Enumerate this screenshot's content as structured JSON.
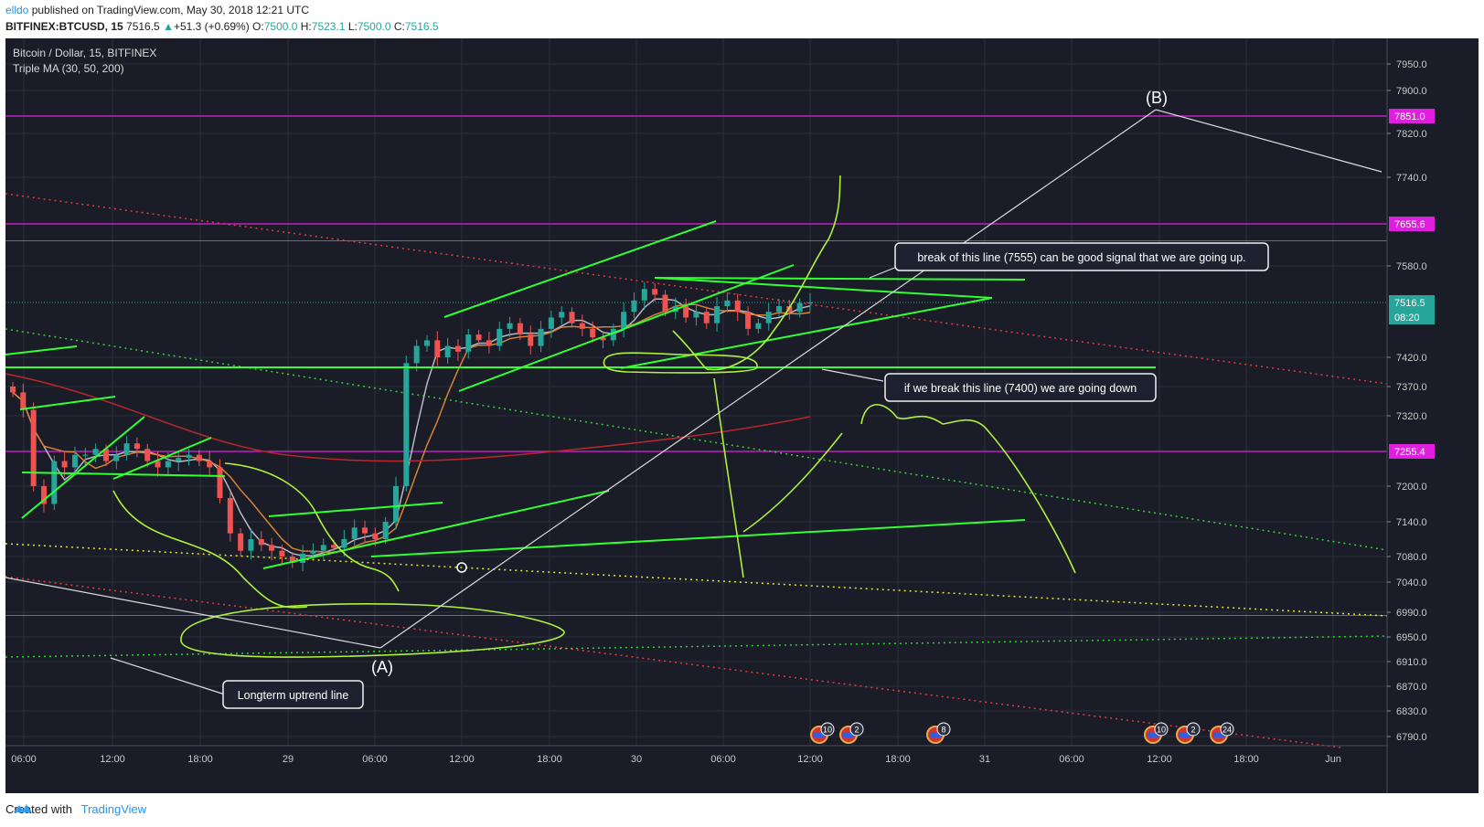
{
  "header": {
    "user": "elldo",
    "published": " published on TradingView.com, May 30, 2018 12:21 UTC",
    "symbol": "BITFINEX:BTCUSD, 15",
    "last": "7516.5",
    "change_arrow": "▲",
    "change": "+51.3 (+0.69%)",
    "o_label": "O:",
    "o": "7500.0",
    "h_label": "H:",
    "h": "7523.1",
    "l_label": "L:",
    "l": "7500.0",
    "c_label": "C:",
    "c": "7516.5"
  },
  "footer": {
    "created": "Created with",
    "brand": "TradingView",
    "logo_icon": "tradingview-logo-icon"
  },
  "colors": {
    "background": "#1a1d28",
    "grid": "#2a2e39",
    "candle_up": "#26a69a",
    "candle_down": "#ef5350",
    "drawing_green": "#32ff32",
    "curve_green": "#aef03c",
    "magenta_level": "#e01ee0",
    "cyan_level": "#2fd6d0",
    "ma30": "#b9b9c6",
    "ma50": "#d68234",
    "ma200": "#b3262b",
    "trend_white": "#dcdcdc"
  },
  "chart_data": {
    "type": "candlestick",
    "title": "Bitcoin / Dollar, 15, BITFINEX",
    "indicator": "Triple MA (30, 50, 200)",
    "y_scale": "price",
    "y_ticks": [
      7950.0,
      7900.0,
      7820.0,
      7740.0,
      7580.0,
      7420.0,
      7370.0,
      7320.0,
      7200.0,
      7140.0,
      7080.0,
      7040.0,
      6990.0,
      6950.0,
      6910.0,
      6870.0,
      6830.0,
      6790.0
    ],
    "x_ticks": [
      "06:00",
      "12:00",
      "18:00",
      "29",
      "06:00",
      "12:00",
      "18:00",
      "30",
      "06:00",
      "12:00",
      "18:00",
      "31",
      "06:00",
      "12:00",
      "18:00",
      "Jun"
    ],
    "price_labels": [
      {
        "value": "7851.0",
        "kind": "level",
        "color": "#e01ee0"
      },
      {
        "value": "7655.6",
        "kind": "level",
        "color": "#e01ee0"
      },
      {
        "value": "7516.5",
        "kind": "last",
        "color": "#26a69a"
      },
      {
        "value": "08:20",
        "kind": "countdown",
        "color": "#26a69a"
      },
      {
        "value": "7255.4",
        "kind": "level",
        "color": "#e01ee0"
      }
    ],
    "horizontal_levels": [
      7851.0,
      7655.6,
      7255.4
    ],
    "cyan_levels": [
      7625,
      6985
    ],
    "last_price": 7516.5,
    "close_series": [
      7360,
      7330,
      7200,
      7170,
      7240,
      7230,
      7250,
      7250,
      7260,
      7240,
      7250,
      7270,
      7260,
      7240,
      7230,
      7240,
      7245,
      7250,
      7240,
      7230,
      7180,
      7120,
      7090,
      7110,
      7100,
      7090,
      7080,
      7070,
      7085,
      7090,
      7100,
      7095,
      7110,
      7130,
      7120,
      7110,
      7140,
      7200,
      7410,
      7440,
      7450,
      7420,
      7440,
      7430,
      7460,
      7450,
      7440,
      7470,
      7480,
      7460,
      7440,
      7470,
      7490,
      7500,
      7480,
      7470,
      7455,
      7450,
      7470,
      7500,
      7520,
      7540,
      7530,
      7500,
      7510,
      7490,
      7500,
      7480,
      7510,
      7520,
      7500,
      7470,
      7480,
      7500,
      7510,
      7500,
      7515,
      7516.5
    ],
    "annotations": [
      {
        "text": "break of this line (7555) can be good signal that we are going up."
      },
      {
        "text": "if we break this line (7400) we are going down"
      },
      {
        "text": "Longterm uptrend line"
      },
      {
        "text": "(A)"
      },
      {
        "text": "(B)"
      }
    ],
    "event_badges": [
      "10",
      "2",
      "8",
      "10",
      "2",
      "24"
    ]
  }
}
